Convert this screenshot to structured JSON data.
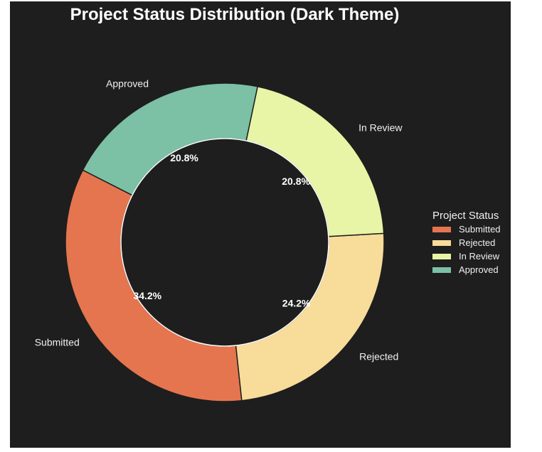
{
  "chart_data": {
    "type": "pie",
    "title": "Project Status Distribution (Dark Theme)",
    "categories": [
      "Submitted",
      "Rejected",
      "In Review",
      "Approved"
    ],
    "values": [
      34.2,
      24.2,
      20.8,
      20.8
    ],
    "value_labels": [
      "34.2%",
      "24.2%",
      "20.8%",
      "20.8%"
    ],
    "colors": [
      "#e5754f",
      "#f7dc9a",
      "#e8f4a6",
      "#7cc0a6"
    ],
    "donut": true,
    "legend": {
      "title": "Project Status",
      "placement": "center-right",
      "entries": [
        "Submitted",
        "Rejected",
        "In Review",
        "Approved"
      ]
    }
  }
}
